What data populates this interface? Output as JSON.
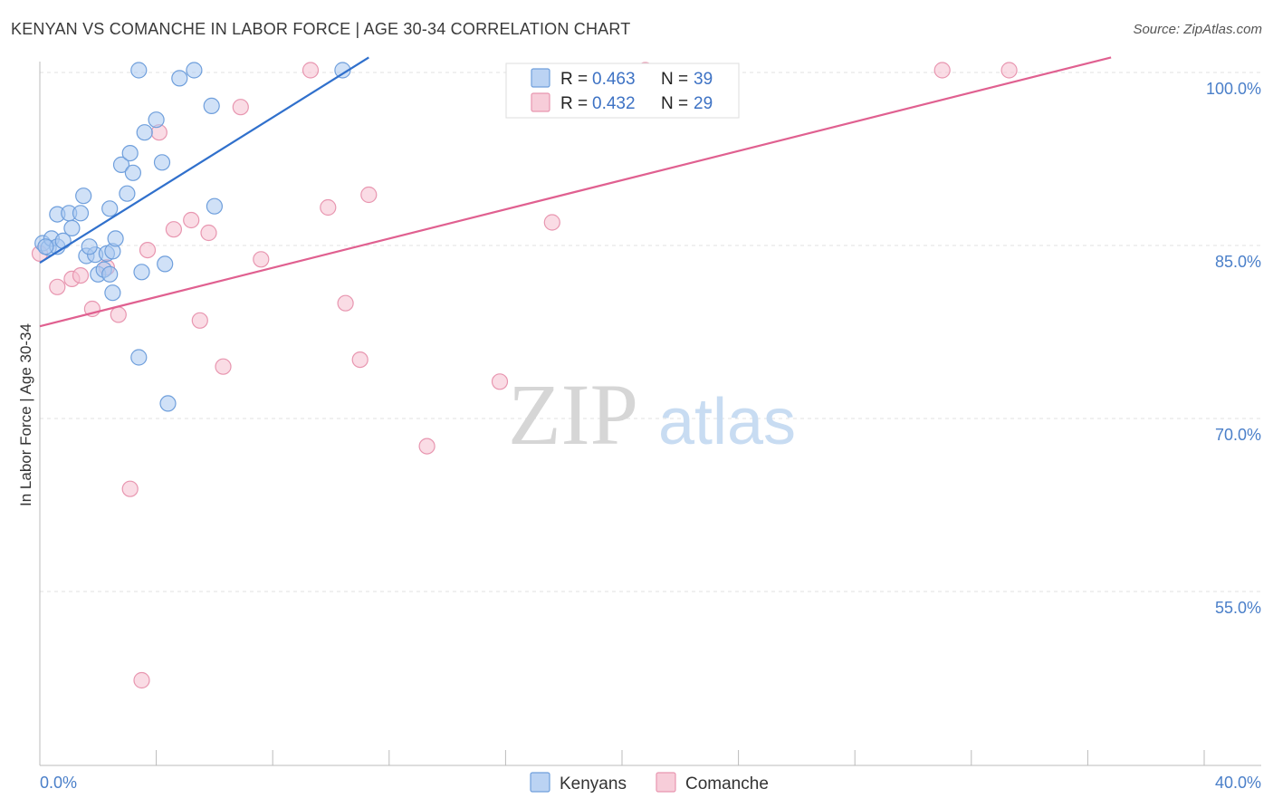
{
  "title": "KENYAN VS COMANCHE IN LABOR FORCE | AGE 30-34 CORRELATION CHART",
  "source": "Source: ZipAtlas.com",
  "watermark": {
    "zip": "ZIP",
    "atlas": "atlas"
  },
  "colors": {
    "kenyans_fill": "#aac8f0",
    "kenyans_stroke": "#6f9fdc",
    "kenyans_line": "#3070cc",
    "comanche_fill": "#f5c0d0",
    "comanche_stroke": "#e896b0",
    "comanche_line": "#e06090",
    "axis_label": "#4a7fc9"
  },
  "legend": {
    "rows": [
      {
        "r_label": "R =",
        "r_value": "0.463",
        "n_label": "N =",
        "n_value": "39"
      },
      {
        "r_label": "R =",
        "r_value": "0.432",
        "n_label": "N =",
        "n_value": "29"
      }
    ]
  },
  "bottom_legend": [
    "Kenyans",
    "Comanche"
  ],
  "chart_data": {
    "type": "scatter",
    "title": "KENYAN VS COMANCHE IN LABOR FORCE | AGE 30-34 CORRELATION CHART",
    "xlabel": "",
    "ylabel": "In Labor Force | Age 30-34",
    "xlim": [
      0,
      40
    ],
    "ylim": [
      43,
      102
    ],
    "x_tick_labels": [
      "0.0%",
      "40.0%"
    ],
    "y_ticks": [
      100,
      85,
      70,
      55
    ],
    "y_tick_labels": [
      "100.0%",
      "85.0%",
      "70.0%",
      "55.0%"
    ],
    "grid": true,
    "legend_position": "top-center",
    "series": [
      {
        "name": "Kenyans",
        "r": 0.463,
        "n": 39,
        "trend": {
          "x": [
            0,
            11.3
          ],
          "y": [
            83.5,
            101.3
          ]
        },
        "points": [
          [
            0.1,
            85.2
          ],
          [
            0.3,
            84.8
          ],
          [
            0.4,
            85.6
          ],
          [
            0.6,
            84.9
          ],
          [
            0.8,
            85.4
          ],
          [
            0.6,
            87.7
          ],
          [
            1.0,
            87.8
          ],
          [
            1.4,
            87.8
          ],
          [
            1.1,
            86.5
          ],
          [
            1.5,
            89.3
          ],
          [
            1.6,
            84.1
          ],
          [
            1.9,
            84.2
          ],
          [
            2.0,
            82.5
          ],
          [
            2.2,
            82.9
          ],
          [
            2.4,
            82.5
          ],
          [
            2.3,
            84.3
          ],
          [
            2.5,
            80.9
          ],
          [
            2.5,
            84.5
          ],
          [
            2.4,
            88.2
          ],
          [
            2.6,
            85.6
          ],
          [
            2.8,
            92.0
          ],
          [
            3.0,
            89.5
          ],
          [
            3.1,
            93.0
          ],
          [
            3.2,
            91.3
          ],
          [
            3.5,
            82.7
          ],
          [
            3.6,
            94.8
          ],
          [
            4.0,
            95.9
          ],
          [
            4.2,
            92.2
          ],
          [
            4.3,
            83.4
          ],
          [
            4.8,
            99.5
          ],
          [
            5.3,
            100.2
          ],
          [
            5.9,
            97.1
          ],
          [
            6.0,
            88.4
          ],
          [
            3.4,
            100.2
          ],
          [
            3.4,
            75.3
          ],
          [
            4.4,
            71.3
          ],
          [
            10.4,
            100.2
          ],
          [
            0.2,
            84.9
          ],
          [
            1.7,
            84.9
          ]
        ]
      },
      {
        "name": "Comanche",
        "r": 0.432,
        "n": 29,
        "trend": {
          "x": [
            0,
            36.8
          ],
          "y": [
            78.0,
            101.3
          ]
        },
        "points": [
          [
            0.0,
            84.3
          ],
          [
            0.6,
            81.4
          ],
          [
            1.1,
            82.1
          ],
          [
            1.4,
            82.4
          ],
          [
            1.8,
            79.5
          ],
          [
            2.3,
            83.1
          ],
          [
            2.7,
            79.0
          ],
          [
            3.1,
            63.9
          ],
          [
            3.5,
            47.3
          ],
          [
            3.7,
            84.6
          ],
          [
            4.1,
            94.8
          ],
          [
            4.6,
            86.4
          ],
          [
            5.2,
            87.2
          ],
          [
            5.8,
            86.1
          ],
          [
            5.5,
            78.5
          ],
          [
            6.3,
            74.5
          ],
          [
            6.9,
            97.0
          ],
          [
            7.6,
            83.8
          ],
          [
            9.3,
            100.2
          ],
          [
            9.9,
            88.3
          ],
          [
            10.5,
            80.0
          ],
          [
            11.0,
            75.1
          ],
          [
            11.3,
            89.4
          ],
          [
            13.3,
            67.6
          ],
          [
            15.8,
            73.2
          ],
          [
            17.6,
            87.0
          ],
          [
            31.0,
            100.2
          ],
          [
            33.3,
            100.2
          ],
          [
            20.8,
            100.2
          ]
        ]
      }
    ]
  }
}
